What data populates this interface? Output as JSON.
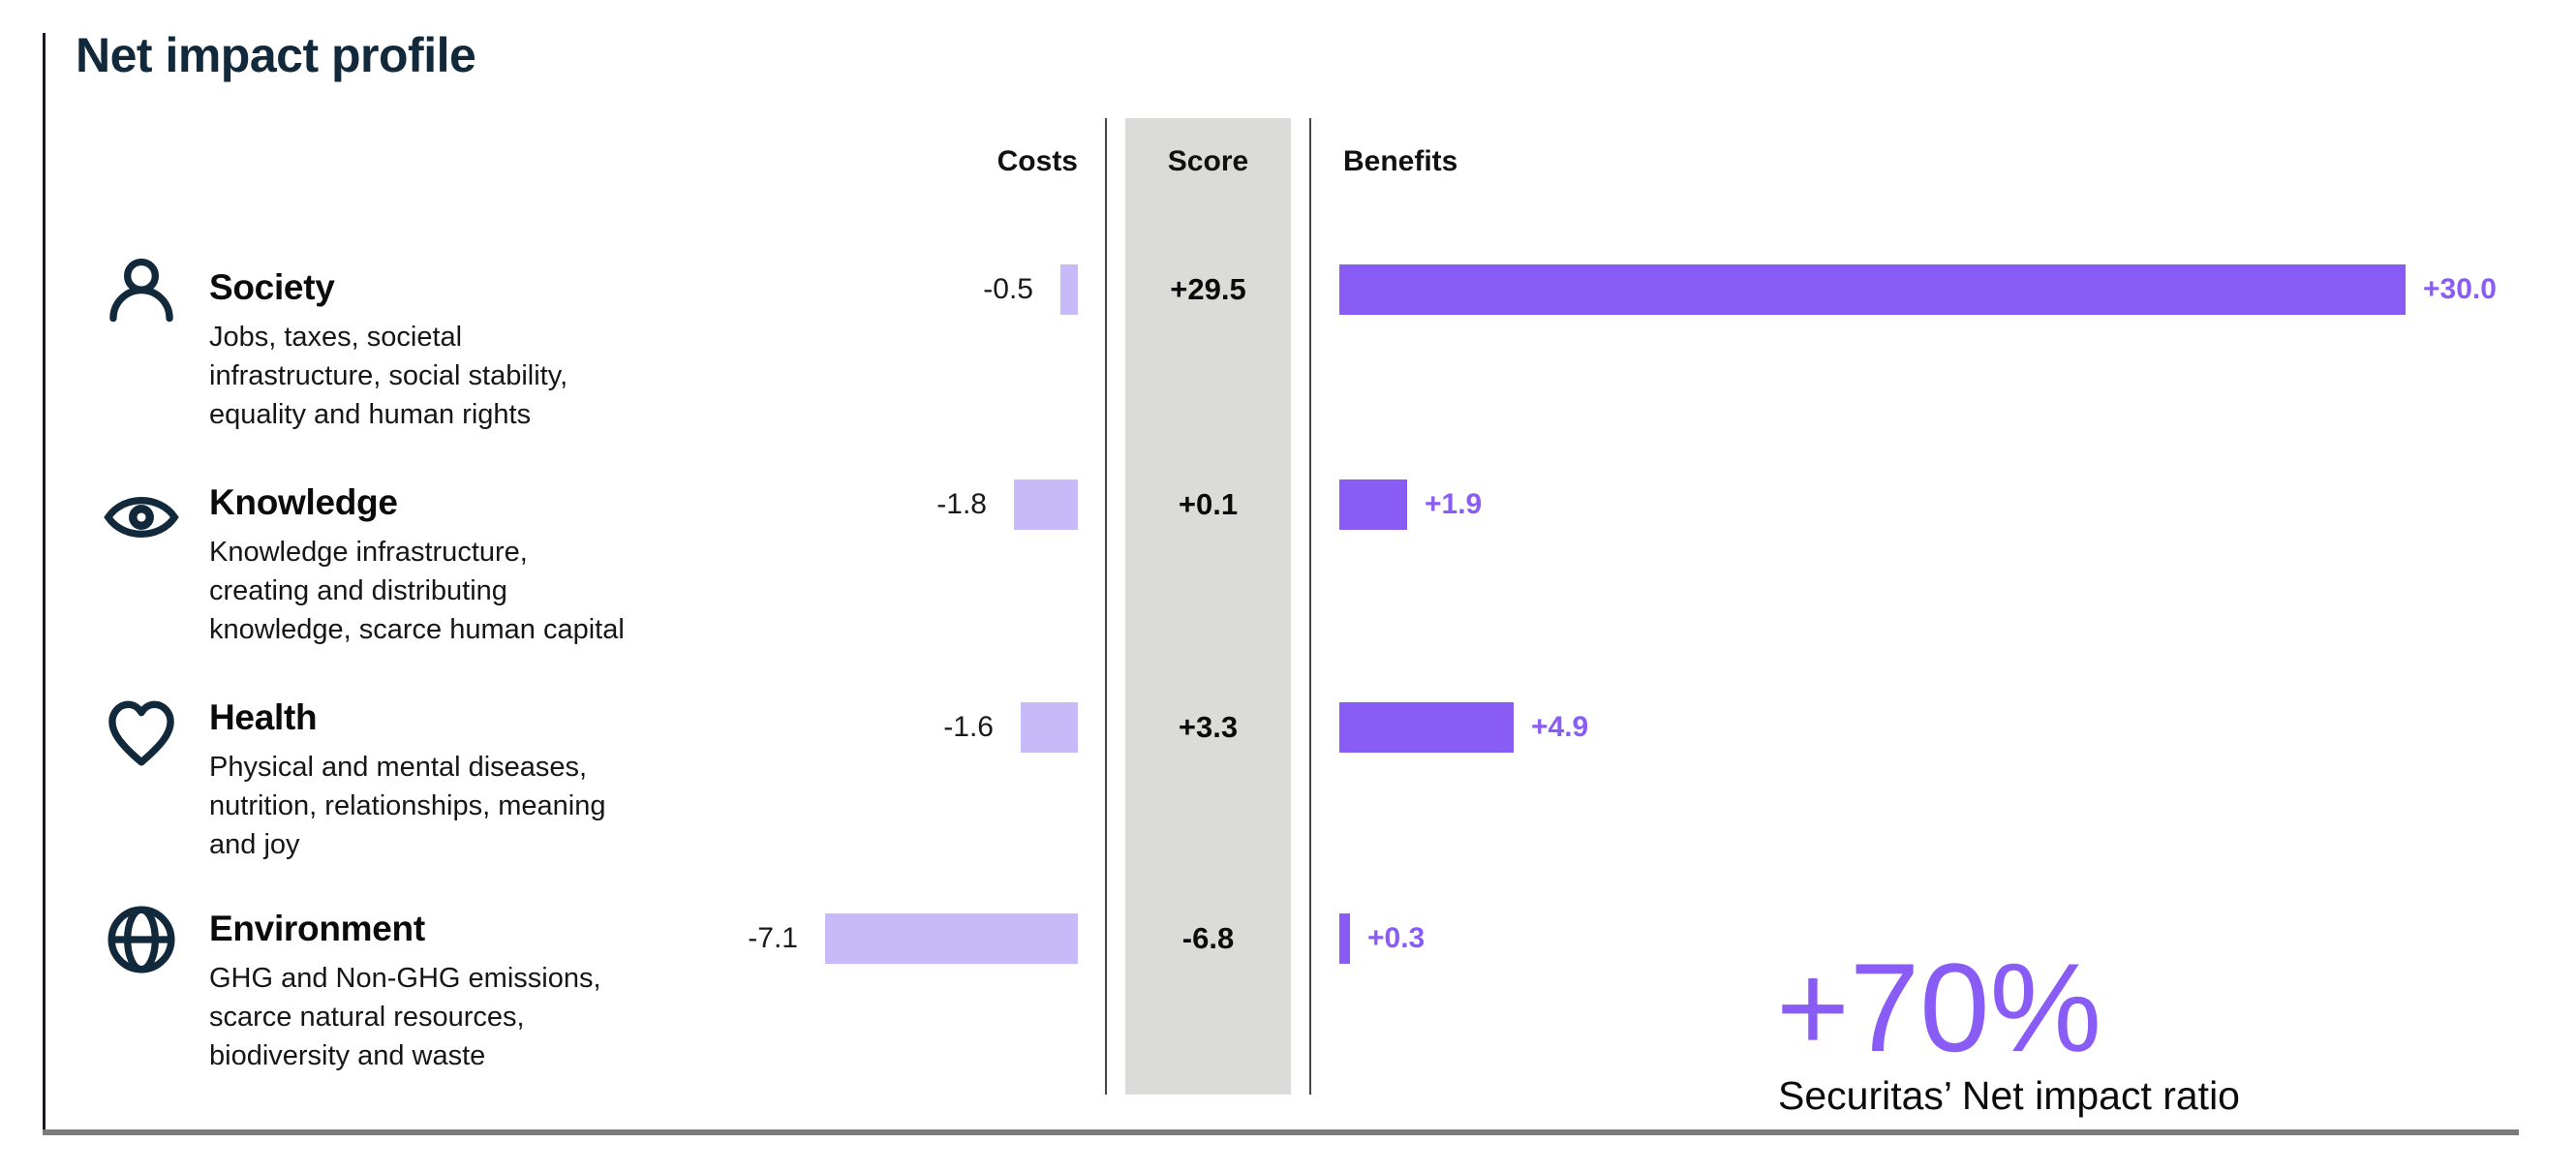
{
  "page_title": "Net impact profile",
  "columns": {
    "costs": "Costs",
    "score": "Score",
    "benefits": "Benefits"
  },
  "chart_data": {
    "type": "bar",
    "orientation": "horizontal",
    "title": "Net impact profile",
    "categories": [
      "Society",
      "Knowledge",
      "Health",
      "Environment"
    ],
    "category_descriptions": [
      "Jobs, taxes, societal\ninfrastructure, social stability,\nequality and human rights",
      "Knowledge infrastructure,\ncreating and distributing\nknowledge, scarce human capital",
      "Physical and mental diseases,\nnutrition, relationships, meaning\nand joy",
      "GHG and Non-GHG emissions,\nscarce natural resources,\nbiodiversity and waste"
    ],
    "category_icons": [
      "person-icon",
      "eye-icon",
      "heart-icon",
      "globe-icon"
    ],
    "series": [
      {
        "name": "Costs",
        "values": [
          -0.5,
          -1.8,
          -1.6,
          -7.1
        ]
      },
      {
        "name": "Score",
        "values": [
          29.5,
          0.1,
          3.3,
          -6.8
        ]
      },
      {
        "name": "Benefits",
        "values": [
          30.0,
          1.9,
          4.9,
          0.3
        ]
      }
    ],
    "value_labels": {
      "costs": [
        "-0.5",
        "-1.8",
        "-1.6",
        "-7.1"
      ],
      "score": [
        "+29.5",
        "+0.1",
        "+3.3",
        "-6.8"
      ],
      "benefits": [
        "+30.0",
        "+1.9",
        "+4.9",
        "+0.3"
      ]
    },
    "value_axis_range_units": [
      0,
      30
    ],
    "grid": "off",
    "legend": "none"
  },
  "summary": {
    "value": "+70%",
    "label": "Securitas’ Net impact ratio"
  },
  "colors": {
    "benefit_bar": "#8A5CF6",
    "cost_bar": "#C8BAF9",
    "score_background": "#DBDBD9",
    "benefit_label": "#8A5CF6",
    "heading_navy": "#11293B",
    "divider_grey": "#7A7A7A"
  }
}
